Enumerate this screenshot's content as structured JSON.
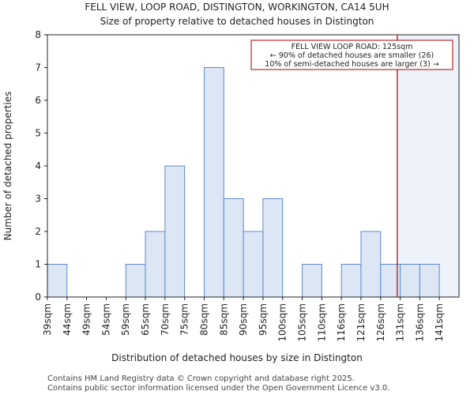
{
  "chart_data": {
    "type": "bar",
    "title": "FELL VIEW, LOOP ROAD, DISTINGTON, WORKINGTON, CA14 5UH",
    "subtitle": "Size of property relative to detached houses in Distington",
    "xlabel": "Distribution of detached houses by size in Distington",
    "ylabel": "Number of detached properties",
    "ylim": [
      0,
      8
    ],
    "yticks": [
      0,
      1,
      2,
      3,
      4,
      5,
      6,
      7,
      8
    ],
    "categories": [
      "39sqm",
      "44sqm",
      "49sqm",
      "54sqm",
      "59sqm",
      "65sqm",
      "70sqm",
      "75sqm",
      "80sqm",
      "85sqm",
      "90sqm",
      "95sqm",
      "100sqm",
      "105sqm",
      "110sqm",
      "116sqm",
      "121sqm",
      "126sqm",
      "131sqm",
      "136sqm",
      "141sqm"
    ],
    "values": [
      1,
      0,
      0,
      0,
      1,
      2,
      4,
      0,
      7,
      3,
      2,
      3,
      0,
      1,
      0,
      1,
      2,
      1,
      1,
      1,
      0
    ],
    "marker": {
      "label": "FELL VIEW LOOP ROAD: 125sqm",
      "bin_position": 17.85
    },
    "annotation": [
      "FELL VIEW LOOP ROAD: 125sqm",
      "← 90% of detached houses are smaller (26)",
      "10% of semi-detached houses are larger (3) →"
    ],
    "colors": {
      "bar_fill": "#dce6f5",
      "bar_stroke": "#5b8bc9",
      "marker": "#aa0000",
      "highlight": "#eef3fb"
    }
  },
  "footer": {
    "line1": "Contains HM Land Registry data © Crown copyright and database right 2025.",
    "line2": "Contains public sector information licensed under the Open Government Licence v3.0."
  }
}
